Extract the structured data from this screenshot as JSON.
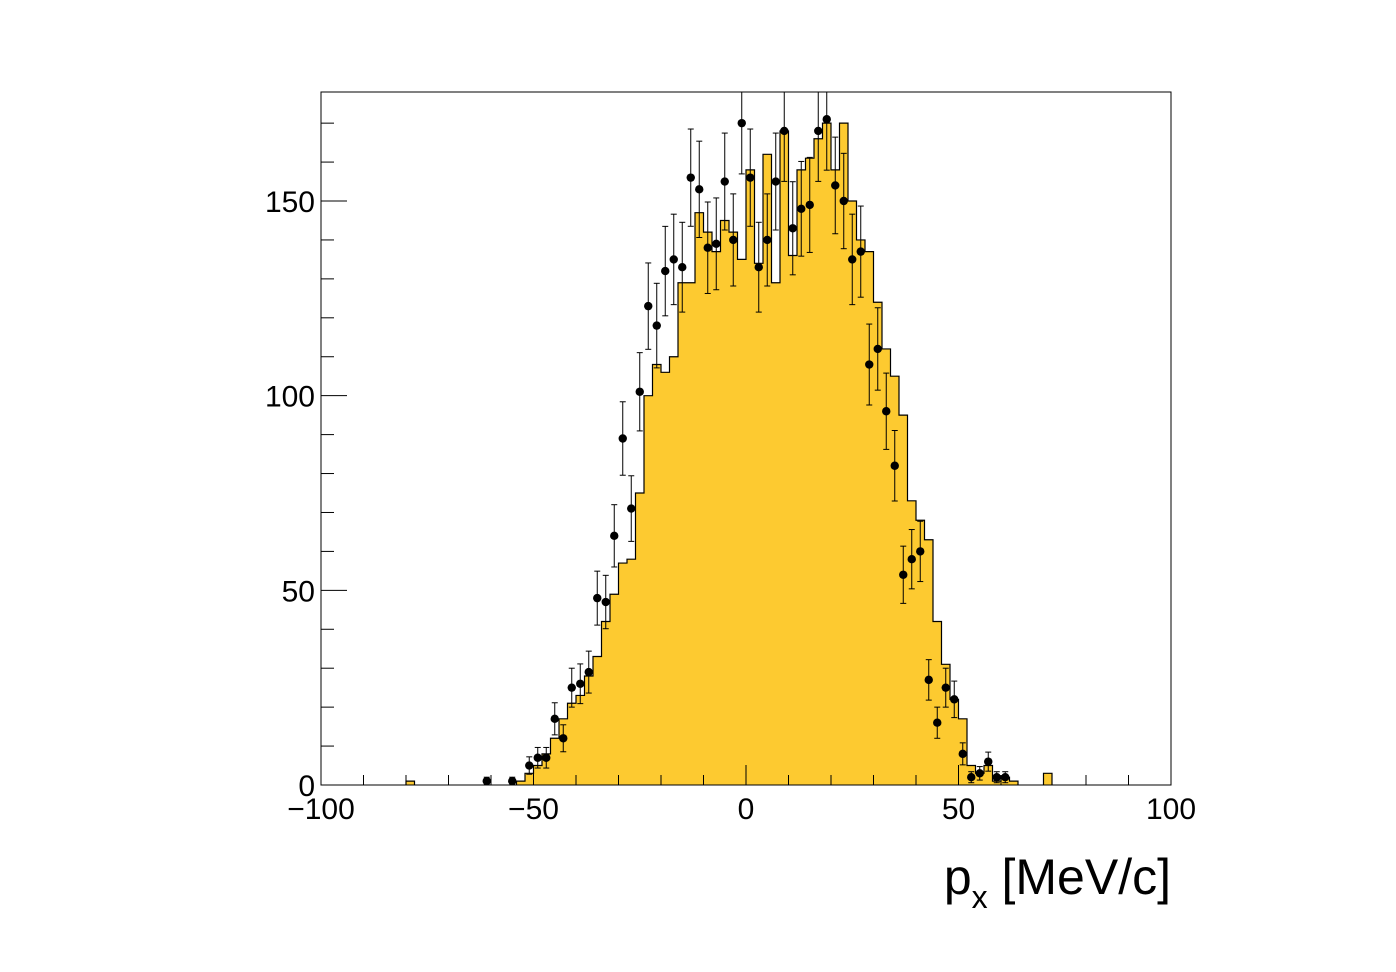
{
  "chart_data": {
    "type": "histogram",
    "title": "",
    "xlabel": {
      "main": "p",
      "sub": "x",
      "rest": " [MeV/c]"
    },
    "ylabel": "",
    "xlim": [
      -100,
      100
    ],
    "ylim": [
      0,
      178
    ],
    "x_ticks": [
      {
        "value": -100,
        "label": "−100"
      },
      {
        "value": -50,
        "label": "−50"
      },
      {
        "value": 0,
        "label": "0"
      },
      {
        "value": 50,
        "label": "50"
      },
      {
        "value": 100,
        "label": "100"
      }
    ],
    "y_ticks": [
      {
        "value": 0,
        "label": "0"
      },
      {
        "value": 50,
        "label": "50"
      },
      {
        "value": 100,
        "label": "100"
      },
      {
        "value": 150,
        "label": "150"
      }
    ],
    "bin_width": 2,
    "legend": "none",
    "grid": false,
    "colors": {
      "histogram_fill": "#fdca30",
      "histogram_line": "#000000",
      "markers": "#000000",
      "frame": "#000000"
    },
    "series": [
      {
        "kind": "filled-histogram",
        "bin_starts": [
          -80,
          -54,
          -52,
          -50,
          -48,
          -46,
          -44,
          -42,
          -40,
          -38,
          -36,
          -34,
          -32,
          -30,
          -28,
          -26,
          -24,
          -22,
          -20,
          -18,
          -16,
          -14,
          -12,
          -10,
          -8,
          -6,
          -4,
          -2,
          0,
          2,
          4,
          6,
          8,
          10,
          12,
          14,
          16,
          18,
          20,
          22,
          24,
          26,
          28,
          30,
          32,
          34,
          36,
          38,
          40,
          42,
          44,
          46,
          48,
          50,
          52,
          54,
          56,
          58,
          60,
          62,
          70
        ],
        "values": [
          1,
          1,
          3,
          5,
          8,
          12,
          17,
          21,
          23,
          28,
          33,
          42,
          49,
          57,
          58,
          75,
          100,
          108,
          106,
          110,
          129,
          129,
          147,
          142,
          137,
          145,
          142,
          135,
          158,
          134,
          162,
          129,
          168,
          136,
          158,
          161,
          166,
          170,
          158,
          170,
          150,
          140,
          137,
          124,
          112,
          105,
          95,
          73,
          68,
          63,
          42,
          31,
          22,
          17,
          5,
          3,
          5,
          1,
          2,
          1,
          3
        ]
      },
      {
        "kind": "points-with-errors",
        "x": [
          -61,
          -55,
          -51,
          -49,
          -47,
          -45,
          -43,
          -41,
          -39,
          -37,
          -35,
          -33,
          -31,
          -29,
          -27,
          -25,
          -23,
          -21,
          -19,
          -17,
          -15,
          -13,
          -11,
          -9,
          -7,
          -5,
          -3,
          -1,
          1,
          3,
          5,
          7,
          9,
          11,
          13,
          15,
          17,
          19,
          21,
          23,
          25,
          27,
          29,
          31,
          33,
          35,
          37,
          39,
          41,
          43,
          45,
          47,
          49,
          51,
          53,
          55,
          57,
          59,
          61
        ],
        "y": [
          1,
          1,
          5,
          7,
          7,
          17,
          12,
          25,
          26,
          29,
          48,
          47,
          64,
          89,
          71,
          101,
          123,
          118,
          132,
          135,
          133,
          156,
          153,
          138,
          139,
          155,
          140,
          170,
          156,
          133,
          140,
          155,
          168,
          143,
          148,
          149,
          168,
          171,
          154,
          150,
          135,
          137,
          108,
          112,
          96,
          82,
          54,
          58,
          60,
          27,
          16,
          25,
          22,
          8,
          2,
          3,
          6,
          2,
          2
        ]
      }
    ]
  }
}
